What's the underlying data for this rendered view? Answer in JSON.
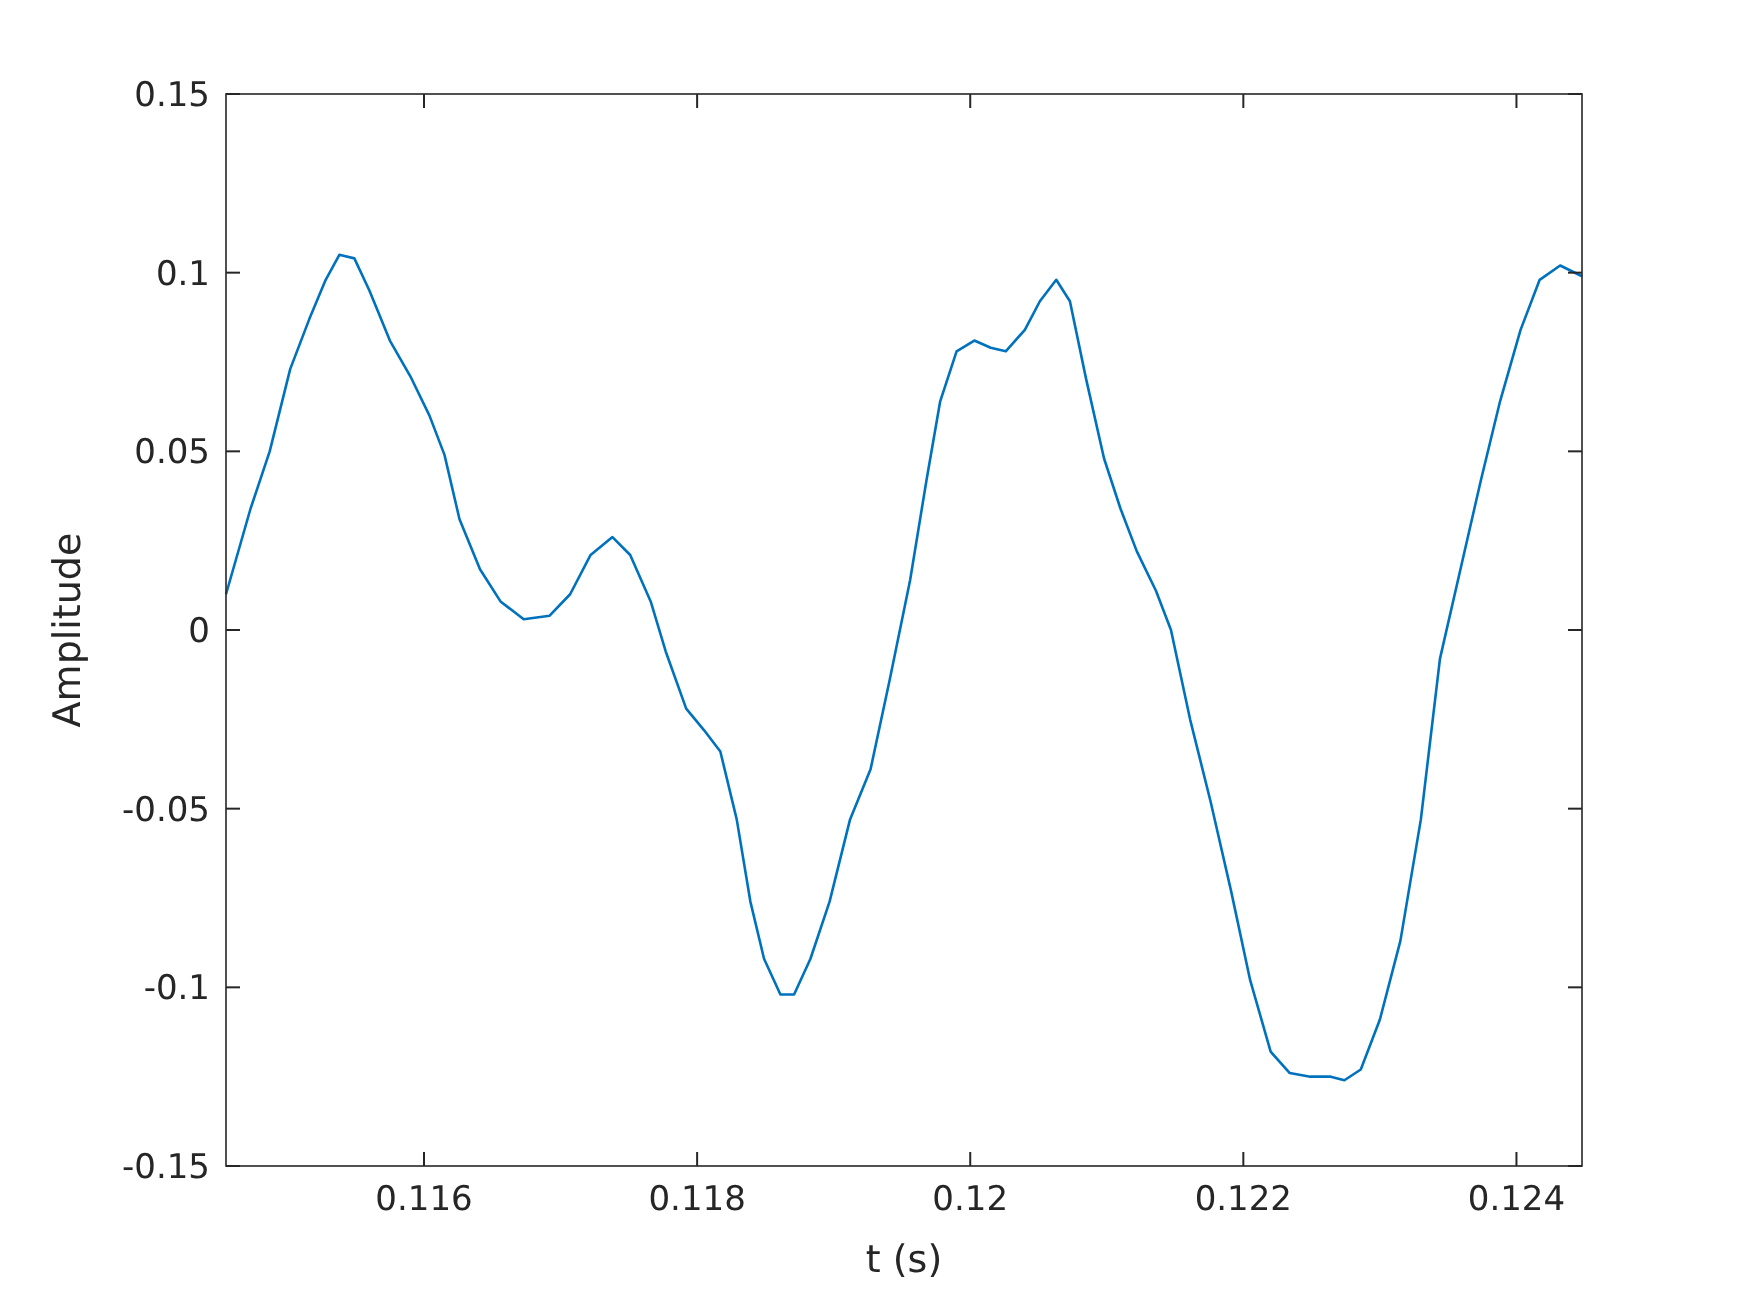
{
  "chart_data": {
    "type": "line",
    "xlabel": "t (s)",
    "ylabel": "Amplitude",
    "xlim": [
      0.11455,
      0.12448
    ],
    "ylim": [
      -0.15,
      0.15
    ],
    "xticks": [
      0.116,
      0.118,
      0.12,
      0.122,
      0.124
    ],
    "yticks": [
      -0.15,
      -0.1,
      -0.05,
      0,
      0.05,
      0.1,
      0.15
    ],
    "marker": "none",
    "line_style": "solid",
    "series": [
      {
        "color": "#0072bd",
        "x": [
          0.11455,
          0.11473,
          0.11487,
          0.11502,
          0.11516,
          0.11528,
          0.11538,
          0.11549,
          0.1156,
          0.11575,
          0.1159,
          0.11604,
          0.11615,
          0.11626,
          0.11641,
          0.11656,
          0.11673,
          0.11692,
          0.11707,
          0.11722,
          0.11738,
          0.11751,
          0.11766,
          0.11777,
          0.11792,
          0.11805,
          0.11817,
          0.11829,
          0.11839,
          0.11849,
          0.11861,
          0.11871,
          0.11883,
          0.11897,
          0.11912,
          0.11927,
          0.11941,
          0.11956,
          0.11968,
          0.11978,
          0.1199,
          0.12003,
          0.12015,
          0.12026,
          0.1204,
          0.12051,
          0.12063,
          0.12073,
          0.12085,
          0.12098,
          0.1211,
          0.12122,
          0.12136,
          0.12147,
          0.12161,
          0.12176,
          0.12191,
          0.12205,
          0.1222,
          0.12234,
          0.12249,
          0.12264,
          0.12274,
          0.12286,
          0.123,
          0.12315,
          0.1233,
          0.12344,
          0.12359,
          0.12374,
          0.12388,
          0.12403,
          0.12417,
          0.12432,
          0.12448
        ],
        "values": [
          0.01,
          0.034,
          0.05,
          0.073,
          0.087,
          0.098,
          0.105,
          0.104,
          0.095,
          0.081,
          0.071,
          0.06,
          0.049,
          0.031,
          0.017,
          0.008,
          0.003,
          0.004,
          0.01,
          0.021,
          0.026,
          0.021,
          0.008,
          -0.006,
          -0.022,
          -0.028,
          -0.034,
          -0.053,
          -0.076,
          -0.092,
          -0.102,
          -0.102,
          -0.092,
          -0.076,
          -0.053,
          -0.039,
          -0.014,
          0.014,
          0.042,
          0.064,
          0.078,
          0.081,
          0.079,
          0.078,
          0.084,
          0.092,
          0.098,
          0.092,
          0.07,
          0.048,
          0.034,
          0.022,
          0.011,
          0,
          -0.025,
          -0.048,
          -0.073,
          -0.098,
          -0.118,
          -0.124,
          -0.125,
          -0.125,
          -0.126,
          -0.123,
          -0.109,
          -0.087,
          -0.053,
          -0.008,
          0.017,
          0.042,
          0.064,
          0.084,
          0.098,
          0.102,
          0.099
        ]
      }
    ]
  }
}
